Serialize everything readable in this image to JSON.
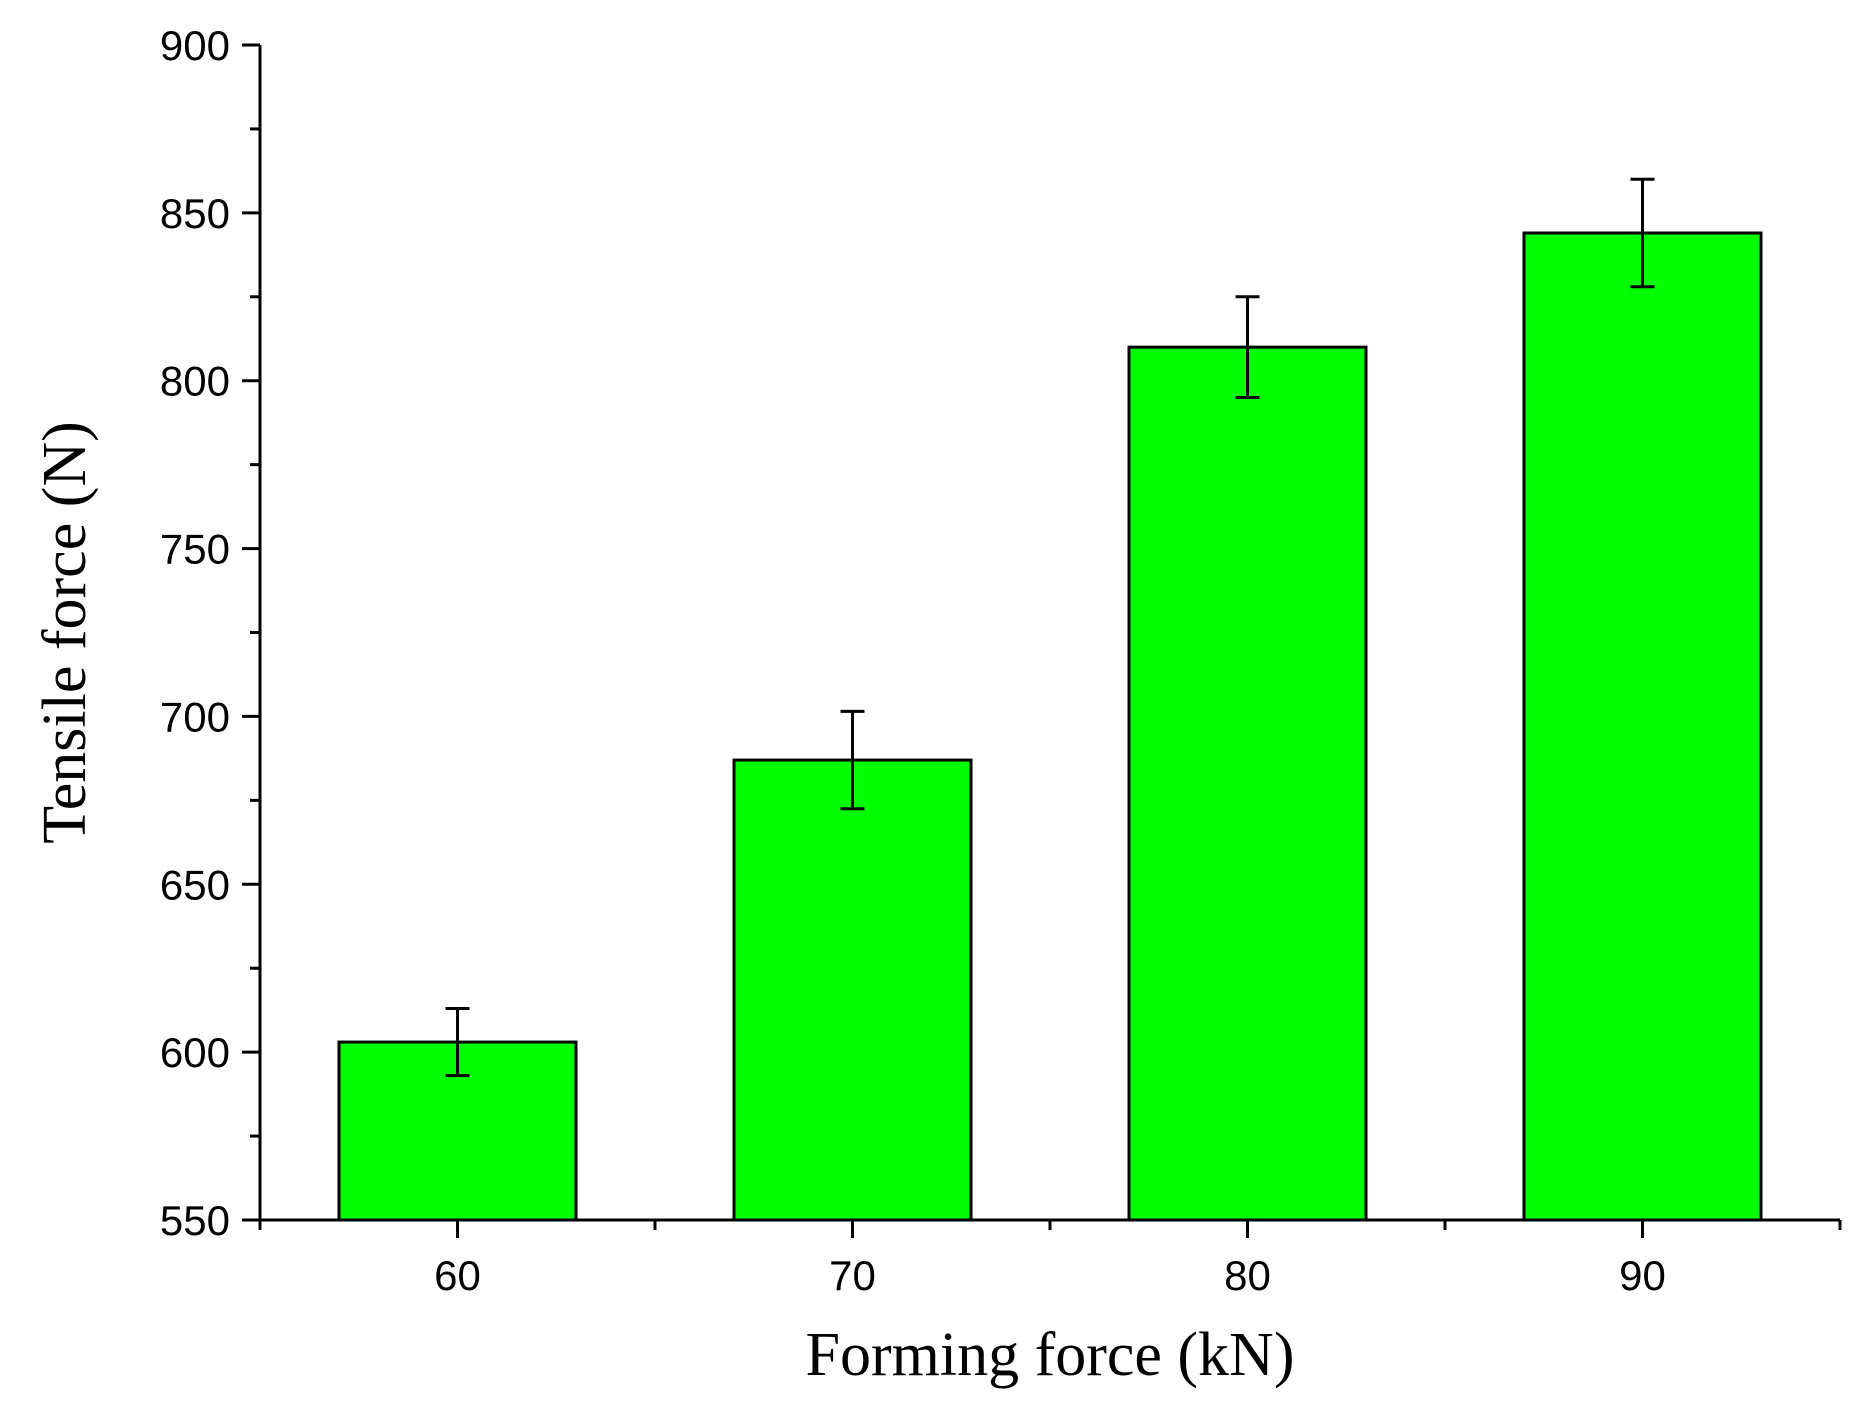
{
  "chart_data": {
    "type": "bar",
    "title": "",
    "xlabel": "Forming force (kN)",
    "ylabel": "Tensile force (N)",
    "categories": [
      "60",
      "70",
      "80",
      "90"
    ],
    "values": [
      603,
      687,
      810,
      844
    ],
    "error": [
      10,
      14.5,
      15,
      16
    ],
    "ylim": [
      550,
      900
    ],
    "yticks": [
      "550",
      "600",
      "650",
      "700",
      "750",
      "800",
      "850",
      "900"
    ],
    "grid": false,
    "legend": "none",
    "colors": {
      "bar_fill": "#00ff00",
      "bar_stroke": "#000000",
      "axis": "#000000"
    }
  }
}
